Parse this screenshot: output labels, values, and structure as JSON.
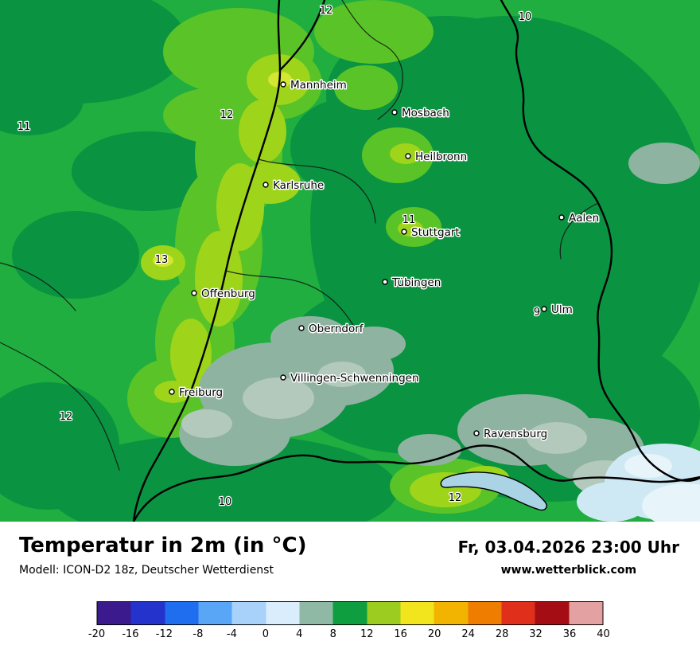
{
  "map": {
    "palette": {
      "base_green": "#1fae3f",
      "dark_green": "#0a9340",
      "bright_green": "#5ac328",
      "yellow_green": "#9ed41a",
      "yellow": "#d2e632",
      "gray_green": "#8fb3a1",
      "gray_green_light": "#b2c9bc",
      "pale_blue": "#cfe9f4",
      "pale_blue_light": "#e7f4fa",
      "lake_blue": "#aad4e6"
    },
    "cities": [
      {
        "name": "Mannheim"
      },
      {
        "name": "Mosbach"
      },
      {
        "name": "Heilbronn"
      },
      {
        "name": "Karlsruhe"
      },
      {
        "name": "Stuttgart"
      },
      {
        "name": "Aalen"
      },
      {
        "name": "Tübingen"
      },
      {
        "name": "Offenburg"
      },
      {
        "name": "Ulm"
      },
      {
        "name": "Oberndorf"
      },
      {
        "name": "Villingen-Schwenningen"
      },
      {
        "name": "Freiburg"
      },
      {
        "name": "Ravensburg"
      }
    ],
    "temps": [
      {
        "value": "12"
      },
      {
        "value": "10"
      },
      {
        "value": "11"
      },
      {
        "value": "12"
      },
      {
        "value": "13"
      },
      {
        "value": "11"
      },
      {
        "value": "9"
      },
      {
        "value": "12"
      },
      {
        "value": "10"
      },
      {
        "value": "12"
      }
    ]
  },
  "footer": {
    "title": "Temperatur in 2m (in °C)",
    "model": "Modell: ICON-D2 18z, Deutscher Wetterdienst",
    "datetime": "Fr, 03.04.2026 23:00 Uhr",
    "website": "www.wetterblick.com"
  },
  "legend": {
    "ticks": [
      "-20",
      "-16",
      "-12",
      "-8",
      "-4",
      "0",
      "4",
      "8",
      "12",
      "16",
      "20",
      "24",
      "28",
      "32",
      "36",
      "40"
    ],
    "colors": [
      "#3a1a8c",
      "#2433cc",
      "#1f6ef0",
      "#58a6f5",
      "#a8d2fa",
      "#d9edfd",
      "#8fb9a4",
      "#0f9e3f",
      "#9bcc1f",
      "#f2e51e",
      "#f2b400",
      "#ef7d00",
      "#e02f1a",
      "#a50d14",
      "#e3a1a1"
    ]
  }
}
